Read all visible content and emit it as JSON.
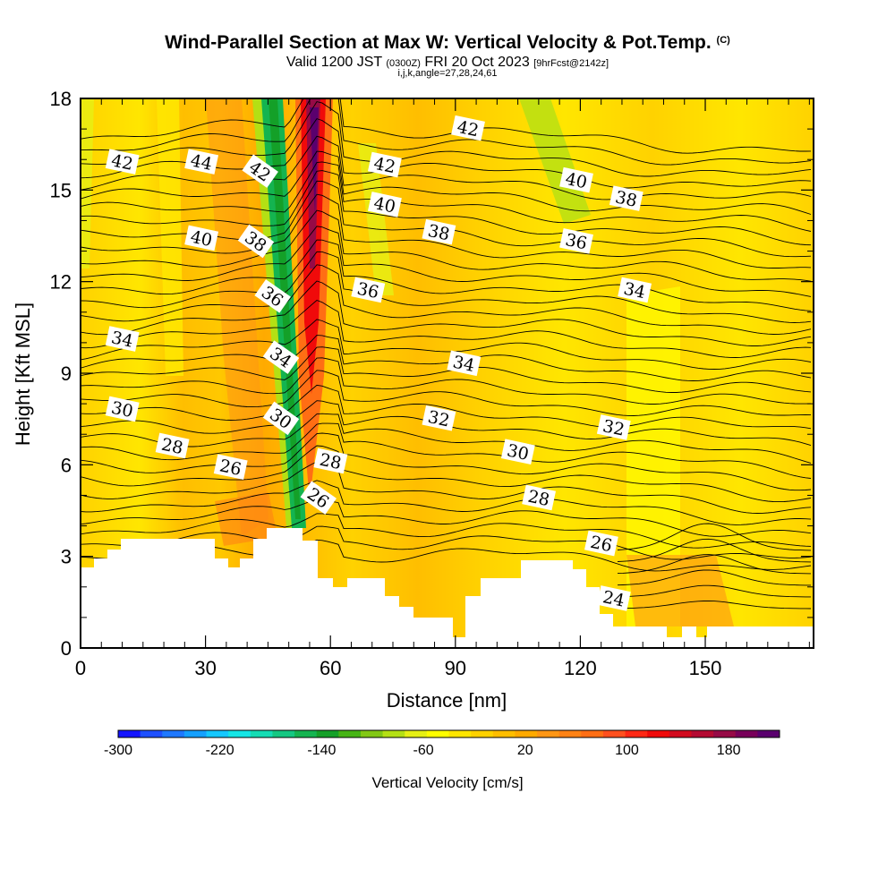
{
  "header": {
    "title_main": "Wind-Parallel Section at Max W: Vertical Velocity & Pot.Temp.",
    "title_copyright": "(C)",
    "valid_prefix": "Valid 1200 JST",
    "valid_utc": "(0300Z)",
    "valid_date": "FRI 20 Oct 2023",
    "forecast_info": "[9hrFcst@2142z]",
    "grid_info": "i,j,k,angle=27,28,24,61"
  },
  "chart_data": {
    "type": "heatmap",
    "xlabel": "Distance [nm]",
    "ylabel": "Height [Kft MSL]",
    "xlim": [
      0,
      176
    ],
    "ylim": [
      0,
      18
    ],
    "x_ticks": [
      0,
      30,
      60,
      90,
      120,
      150
    ],
    "y_ticks": [
      0,
      3,
      6,
      9,
      12,
      15,
      18
    ],
    "colorbar": {
      "title": "Vertical Velocity [cm/s]",
      "range": [
        -300,
        220
      ],
      "labels": [
        -300,
        -220,
        -140,
        -60,
        20,
        100,
        180
      ],
      "colors": [
        "#1414ff",
        "#1e50ff",
        "#1e78ff",
        "#14a0ff",
        "#14c8ff",
        "#14e6e6",
        "#14dcb4",
        "#14c882",
        "#14b450",
        "#14a028",
        "#46b414",
        "#82c814",
        "#b4e014",
        "#e6f014",
        "#ffff00",
        "#ffe600",
        "#ffd200",
        "#ffbe00",
        "#ffaa00",
        "#ff9614",
        "#ff8214",
        "#ff6e14",
        "#ff501e",
        "#ff2814",
        "#f00a0a",
        "#d20a1e",
        "#b40a32",
        "#960a46",
        "#78005a",
        "#5a006e"
      ]
    },
    "contour_field": "Potential Temperature",
    "contour_levels": [
      24,
      26,
      28,
      30,
      32,
      34,
      36,
      38,
      40,
      42,
      44
    ],
    "contour_labels": [
      {
        "text": "42",
        "x": 10,
        "y": 15.9
      },
      {
        "text": "44",
        "x": 29,
        "y": 15.9
      },
      {
        "text": "42",
        "x": 43,
        "y": 15.6
      },
      {
        "text": "42",
        "x": 73,
        "y": 15.8
      },
      {
        "text": "42",
        "x": 93,
        "y": 17.0
      },
      {
        "text": "40",
        "x": 119,
        "y": 15.3
      },
      {
        "text": "38",
        "x": 131,
        "y": 14.7
      },
      {
        "text": "40",
        "x": 29,
        "y": 13.4
      },
      {
        "text": "38",
        "x": 42,
        "y": 13.3
      },
      {
        "text": "40",
        "x": 73,
        "y": 14.5
      },
      {
        "text": "38",
        "x": 86,
        "y": 13.6
      },
      {
        "text": "36",
        "x": 119,
        "y": 13.3
      },
      {
        "text": "34",
        "x": 133,
        "y": 11.7
      },
      {
        "text": "36",
        "x": 46,
        "y": 11.5
      },
      {
        "text": "36",
        "x": 69,
        "y": 11.7
      },
      {
        "text": "34",
        "x": 10,
        "y": 10.1
      },
      {
        "text": "34",
        "x": 48,
        "y": 9.5
      },
      {
        "text": "34",
        "x": 92,
        "y": 9.3
      },
      {
        "text": "30",
        "x": 10,
        "y": 7.8
      },
      {
        "text": "30",
        "x": 48,
        "y": 7.5
      },
      {
        "text": "32",
        "x": 86,
        "y": 7.5
      },
      {
        "text": "32",
        "x": 128,
        "y": 7.2
      },
      {
        "text": "28",
        "x": 22,
        "y": 6.6
      },
      {
        "text": "26",
        "x": 36,
        "y": 5.9
      },
      {
        "text": "28",
        "x": 60,
        "y": 6.1
      },
      {
        "text": "30",
        "x": 105,
        "y": 6.4
      },
      {
        "text": "26",
        "x": 57,
        "y": 4.9
      },
      {
        "text": "28",
        "x": 110,
        "y": 4.9
      },
      {
        "text": "26",
        "x": 125,
        "y": 3.4
      },
      {
        "text": "24",
        "x": 128,
        "y": 1.6
      }
    ]
  }
}
